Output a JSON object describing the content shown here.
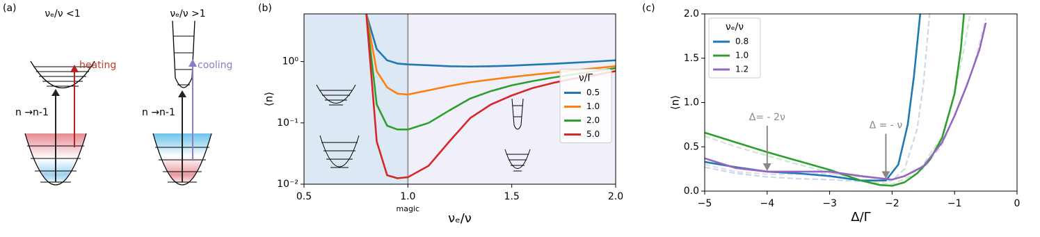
{
  "diagram": {
    "label": "(a)",
    "left_title": "νₑ/ν <1",
    "right_title": "νₑ/ν >1",
    "heating": "heating",
    "cooling": "cooling",
    "left_transition": "n →n-1",
    "right_transition": "n →n-1"
  },
  "chart_data": [
    {
      "type": "line",
      "label": "(b)",
      "xlabel": "νₑ/ν",
      "ylabel": "⟨n⟩",
      "log_y": true,
      "background": "#f1effa",
      "shade_x": [
        0.5,
        1.0
      ],
      "shade_color": "#dde8f5",
      "vline": 1,
      "vline_color": "#999999",
      "x_annotation": {
        "text": "magic",
        "x": 1
      },
      "xlim": [
        0.5,
        2.0
      ],
      "xticks": [
        0.5,
        {
          "value": 1,
          "label": "1.0"
        },
        1.5,
        {
          "value": 2,
          "label": "2.0"
        }
      ],
      "ylim": [
        0.01,
        6
      ],
      "yticks": [
        {
          "value": 0.01,
          "label": "10⁻²"
        },
        {
          "value": 0.1,
          "label": "10⁻¹"
        },
        {
          "value": 1,
          "label": "10⁰"
        }
      ],
      "legend": "center right",
      "legend_title": "ν/Γ",
      "x": [
        0.8,
        0.85,
        0.9,
        0.95,
        1.0,
        1.1,
        1.2,
        1.3,
        1.4,
        1.5,
        1.6,
        1.7,
        1.8,
        1.9,
        2.0
      ],
      "series": [
        {
          "name": "0.5",
          "color": "#1f77b4",
          "values": [
            6,
            1.6,
            1.05,
            0.93,
            0.9,
            0.87,
            0.84,
            0.83,
            0.84,
            0.86,
            0.89,
            0.92,
            0.96,
            1.0,
            1.05
          ]
        },
        {
          "name": "1.0",
          "color": "#ff7f0e",
          "values": [
            6,
            0.7,
            0.38,
            0.3,
            0.29,
            0.34,
            0.4,
            0.46,
            0.51,
            0.56,
            0.61,
            0.66,
            0.72,
            0.78,
            0.84
          ]
        },
        {
          "name": "2.0",
          "color": "#2ca02c",
          "values": [
            6,
            0.2,
            0.09,
            0.078,
            0.078,
            0.1,
            0.16,
            0.25,
            0.33,
            0.41,
            0.48,
            0.55,
            0.62,
            0.7,
            0.78
          ]
        },
        {
          "name": "5.0",
          "color": "#d62728",
          "values": [
            6,
            0.05,
            0.014,
            0.0125,
            0.013,
            0.02,
            0.05,
            0.12,
            0.2,
            0.28,
            0.37,
            0.45,
            0.53,
            0.6,
            0.7
          ]
        }
      ]
    },
    {
      "type": "line",
      "label": "(c)",
      "xlabel": "Δ/Γ",
      "ylabel": "⟨n⟩",
      "log_y": false,
      "xlim": [
        -5,
        0
      ],
      "xticks": [
        {
          "value": -5,
          "label": "−5"
        },
        {
          "value": -4,
          "label": "−4"
        },
        {
          "value": -3,
          "label": "−3"
        },
        {
          "value": -2,
          "label": "−2"
        },
        {
          "value": -1,
          "label": "−1"
        },
        0
      ],
      "ylim": [
        0,
        2
      ],
      "yticks": [
        {
          "value": 0,
          "label": "0.0"
        },
        0.5,
        {
          "value": 1,
          "label": "1.0"
        },
        1.5,
        {
          "value": 2,
          "label": "2.0"
        }
      ],
      "legend": "upper left",
      "legend_title": "νₑ/ν",
      "annotations": [
        {
          "text": "Δ= - 2ν",
          "x": -4,
          "y": 0.22
        },
        {
          "text": "Δ = - ν",
          "x": -2.1,
          "y": 0.13
        }
      ],
      "series": [
        {
          "color": "#c9d9ea",
          "dashed": true,
          "x": [
            -5,
            -4.5,
            -4,
            -3.5,
            -3,
            -2.5,
            -2,
            -1.8,
            -1.6,
            -1.5,
            -1.4
          ],
          "values": [
            0.27,
            0.2,
            0.16,
            0.14,
            0.13,
            0.11,
            0.12,
            0.25,
            0.7,
            1.2,
            2.0
          ]
        },
        {
          "color": "#cfe6cf",
          "dashed": true,
          "x": [
            -5,
            -4.5,
            -4,
            -3.5,
            -3,
            -2.5,
            -2,
            -1.6,
            -1.2,
            -1,
            -0.85,
            -0.75
          ],
          "values": [
            0.62,
            0.5,
            0.4,
            0.3,
            0.21,
            0.12,
            0.08,
            0.2,
            0.62,
            1.1,
            1.6,
            2.0
          ]
        },
        {
          "color": "#e2daee",
          "dashed": true,
          "x": [
            -5,
            -4.5,
            -4,
            -3.5,
            -3,
            -2.5,
            -2,
            -1.5,
            -1.2,
            -1,
            -0.7,
            -0.5
          ],
          "values": [
            0.3,
            0.22,
            0.19,
            0.19,
            0.2,
            0.16,
            0.13,
            0.25,
            0.52,
            0.85,
            1.4,
            1.95
          ]
        },
        {
          "name": "0.8",
          "color": "#1f77b4",
          "x": [
            -5,
            -4.5,
            -4,
            -3.5,
            -3,
            -2.5,
            -2.1,
            -1.9,
            -1.75,
            -1.65,
            -1.55
          ],
          "values": [
            0.33,
            0.27,
            0.22,
            0.2,
            0.17,
            0.12,
            0.12,
            0.3,
            0.75,
            1.3,
            2.0
          ]
        },
        {
          "name": "1.0",
          "color": "#2ca02c",
          "x": [
            -5,
            -4.5,
            -4,
            -3.5,
            -3,
            -2.5,
            -2.2,
            -2,
            -1.8,
            -1.6,
            -1.4,
            -1.2,
            -1.0,
            -0.9,
            -0.85
          ],
          "values": [
            0.66,
            0.55,
            0.44,
            0.34,
            0.24,
            0.12,
            0.07,
            0.06,
            0.1,
            0.2,
            0.35,
            0.6,
            1.1,
            1.6,
            2.0
          ]
        },
        {
          "name": "1.2",
          "color": "#9467bd",
          "x": [
            -5,
            -4.5,
            -4,
            -3.5,
            -3,
            -2.5,
            -2,
            -1.8,
            -1.5,
            -1.2,
            -1,
            -0.8,
            -0.6,
            -0.5
          ],
          "values": [
            0.37,
            0.26,
            0.22,
            0.22,
            0.22,
            0.17,
            0.13,
            0.17,
            0.28,
            0.55,
            0.85,
            1.2,
            1.6,
            1.9
          ]
        }
      ]
    }
  ]
}
